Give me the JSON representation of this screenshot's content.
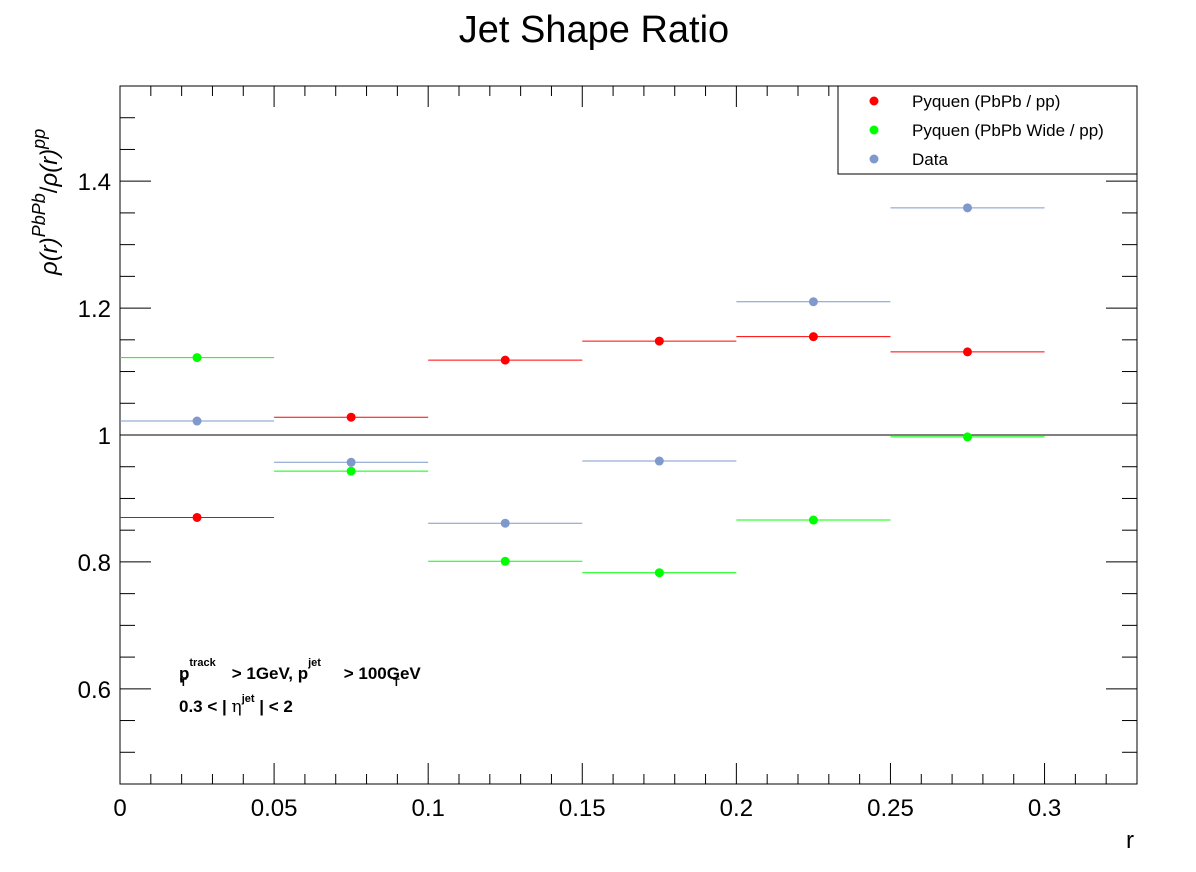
{
  "chart_data": {
    "type": "scatter",
    "title": "Jet Shape Ratio",
    "xlabel": "r",
    "ylabel": {
      "main_a": "ρ(r)",
      "sup_a": "PbPb",
      "slash": "/",
      "main_b": "ρ(r)",
      "sup_b": "pp"
    },
    "xlim": [
      0,
      0.33
    ],
    "ylim": [
      0.45,
      1.55
    ],
    "x_ticks": [
      {
        "value": 0,
        "label": "0"
      },
      {
        "value": 0.05,
        "label": "0.05"
      },
      {
        "value": 0.1,
        "label": "0.1"
      },
      {
        "value": 0.15,
        "label": "0.15"
      },
      {
        "value": 0.2,
        "label": "0.2"
      },
      {
        "value": 0.25,
        "label": "0.25"
      },
      {
        "value": 0.3,
        "label": "0.3"
      }
    ],
    "y_ticks": [
      {
        "value": 0.6,
        "label": "0.6"
      },
      {
        "value": 0.8,
        "label": "0.8"
      },
      {
        "value": 1.0,
        "label": "1"
      },
      {
        "value": 1.2,
        "label": "1.2"
      },
      {
        "value": 1.4,
        "label": "1.4"
      }
    ],
    "reference_line": 1.0,
    "legend_position": "top-right",
    "series": [
      {
        "name": "Pyquen (PbPb / pp)",
        "color": "#ff0000",
        "points": [
          {
            "x": 0.025,
            "xlow": 0.0,
            "xhigh": 0.05,
            "y": 0.87
          },
          {
            "x": 0.075,
            "xlow": 0.05,
            "xhigh": 0.1,
            "y": 1.028
          },
          {
            "x": 0.125,
            "xlow": 0.1,
            "xhigh": 0.15,
            "y": 1.118
          },
          {
            "x": 0.175,
            "xlow": 0.15,
            "xhigh": 0.2,
            "y": 1.148
          },
          {
            "x": 0.225,
            "xlow": 0.2,
            "xhigh": 0.25,
            "y": 1.155
          },
          {
            "x": 0.275,
            "xlow": 0.25,
            "xhigh": 0.3,
            "y": 1.131
          }
        ]
      },
      {
        "name": "Pyquen (PbPb Wide / pp)",
        "color": "#00ff00",
        "points": [
          {
            "x": 0.025,
            "xlow": 0.0,
            "xhigh": 0.05,
            "y": 1.122
          },
          {
            "x": 0.075,
            "xlow": 0.05,
            "xhigh": 0.1,
            "y": 0.943
          },
          {
            "x": 0.125,
            "xlow": 0.1,
            "xhigh": 0.15,
            "y": 0.801
          },
          {
            "x": 0.175,
            "xlow": 0.15,
            "xhigh": 0.2,
            "y": 0.783
          },
          {
            "x": 0.225,
            "xlow": 0.2,
            "xhigh": 0.25,
            "y": 0.866
          },
          {
            "x": 0.275,
            "xlow": 0.25,
            "xhigh": 0.3,
            "y": 0.997
          }
        ]
      },
      {
        "name": "Data",
        "color": "#7f99cc",
        "points": [
          {
            "x": 0.025,
            "xlow": 0.0,
            "xhigh": 0.05,
            "y": 1.022
          },
          {
            "x": 0.075,
            "xlow": 0.05,
            "xhigh": 0.1,
            "y": 0.957
          },
          {
            "x": 0.125,
            "xlow": 0.1,
            "xhigh": 0.15,
            "y": 0.861
          },
          {
            "x": 0.175,
            "xlow": 0.15,
            "xhigh": 0.2,
            "y": 0.959
          },
          {
            "x": 0.225,
            "xlow": 0.2,
            "xhigh": 0.25,
            "y": 1.21
          },
          {
            "x": 0.275,
            "xlow": 0.25,
            "xhigh": 0.3,
            "y": 1.358
          }
        ]
      }
    ],
    "annotations": {
      "line1": {
        "p1": "p",
        "p1_sup": "track",
        "p1_sub": "T",
        "mid": " > 1GeV, ",
        "p2": "p",
        "p2_sup": "jet",
        "p2_sub": "T",
        "end": " > 100GeV"
      },
      "line2": {
        "pre": "0.3 < | ",
        "eta": "η",
        "eta_sup": "jet",
        "post": " | < 2"
      }
    }
  }
}
